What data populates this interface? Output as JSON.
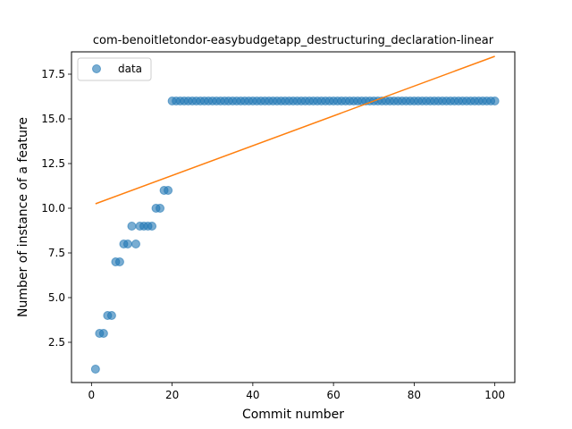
{
  "chart_data": {
    "type": "scatter",
    "title": "com-benoitletondor-easybudgetapp_destructuring_declaration-linear",
    "xlabel": "Commit number",
    "ylabel": "Number of instance of a feature",
    "xlim": [
      -4.95,
      104.95
    ],
    "ylim": [
      0.25,
      18.75
    ],
    "x_ticks": [
      0,
      20,
      40,
      60,
      80,
      100
    ],
    "y_ticks": [
      2.5,
      5.0,
      7.5,
      10.0,
      12.5,
      15.0,
      17.5
    ],
    "x_tick_labels": [
      "0",
      "20",
      "40",
      "60",
      "80",
      "100"
    ],
    "y_tick_labels": [
      "2.5",
      "5.0",
      "7.5",
      "10.0",
      "12.5",
      "15.0",
      "17.5"
    ],
    "grid": false,
    "legend_position": "top-left",
    "colors": {
      "data": "#1f77b4",
      "fit": "#ff7f0e"
    },
    "series": [
      {
        "name": "data",
        "kind": "scatter",
        "points": [
          [
            1,
            1
          ],
          [
            2,
            3
          ],
          [
            3,
            3
          ],
          [
            4,
            4
          ],
          [
            5,
            4
          ],
          [
            6,
            7
          ],
          [
            7,
            7
          ],
          [
            8,
            8
          ],
          [
            9,
            8
          ],
          [
            10,
            9
          ],
          [
            11,
            8
          ],
          [
            12,
            9
          ],
          [
            13,
            9
          ],
          [
            14,
            9
          ],
          [
            15,
            9
          ],
          [
            16,
            10
          ],
          [
            17,
            10
          ],
          [
            18,
            11
          ],
          [
            19,
            11
          ],
          [
            20,
            16
          ],
          [
            21,
            16
          ],
          [
            22,
            16
          ],
          [
            23,
            16
          ],
          [
            24,
            16
          ],
          [
            25,
            16
          ],
          [
            26,
            16
          ],
          [
            27,
            16
          ],
          [
            28,
            16
          ],
          [
            29,
            16
          ],
          [
            30,
            16
          ],
          [
            31,
            16
          ],
          [
            32,
            16
          ],
          [
            33,
            16
          ],
          [
            34,
            16
          ],
          [
            35,
            16
          ],
          [
            36,
            16
          ],
          [
            37,
            16
          ],
          [
            38,
            16
          ],
          [
            39,
            16
          ],
          [
            40,
            16
          ],
          [
            41,
            16
          ],
          [
            42,
            16
          ],
          [
            43,
            16
          ],
          [
            44,
            16
          ],
          [
            45,
            16
          ],
          [
            46,
            16
          ],
          [
            47,
            16
          ],
          [
            48,
            16
          ],
          [
            49,
            16
          ],
          [
            50,
            16
          ],
          [
            51,
            16
          ],
          [
            52,
            16
          ],
          [
            53,
            16
          ],
          [
            54,
            16
          ],
          [
            55,
            16
          ],
          [
            56,
            16
          ],
          [
            57,
            16
          ],
          [
            58,
            16
          ],
          [
            59,
            16
          ],
          [
            60,
            16
          ],
          [
            61,
            16
          ],
          [
            62,
            16
          ],
          [
            63,
            16
          ],
          [
            64,
            16
          ],
          [
            65,
            16
          ],
          [
            66,
            16
          ],
          [
            67,
            16
          ],
          [
            68,
            16
          ],
          [
            69,
            16
          ],
          [
            70,
            16
          ],
          [
            71,
            16
          ],
          [
            72,
            16
          ],
          [
            73,
            16
          ],
          [
            74,
            16
          ],
          [
            75,
            16
          ],
          [
            76,
            16
          ],
          [
            77,
            16
          ],
          [
            78,
            16
          ],
          [
            79,
            16
          ],
          [
            80,
            16
          ],
          [
            81,
            16
          ],
          [
            82,
            16
          ],
          [
            83,
            16
          ],
          [
            84,
            16
          ],
          [
            85,
            16
          ],
          [
            86,
            16
          ],
          [
            87,
            16
          ],
          [
            88,
            16
          ],
          [
            89,
            16
          ],
          [
            90,
            16
          ],
          [
            91,
            16
          ],
          [
            92,
            16
          ],
          [
            93,
            16
          ],
          [
            94,
            16
          ],
          [
            95,
            16
          ],
          [
            96,
            16
          ],
          [
            97,
            16
          ],
          [
            98,
            16
          ],
          [
            99,
            16
          ],
          [
            100,
            16
          ]
        ]
      },
      {
        "kind": "line",
        "points": [
          [
            1,
            10.25
          ],
          [
            100,
            18.5
          ]
        ]
      }
    ]
  }
}
